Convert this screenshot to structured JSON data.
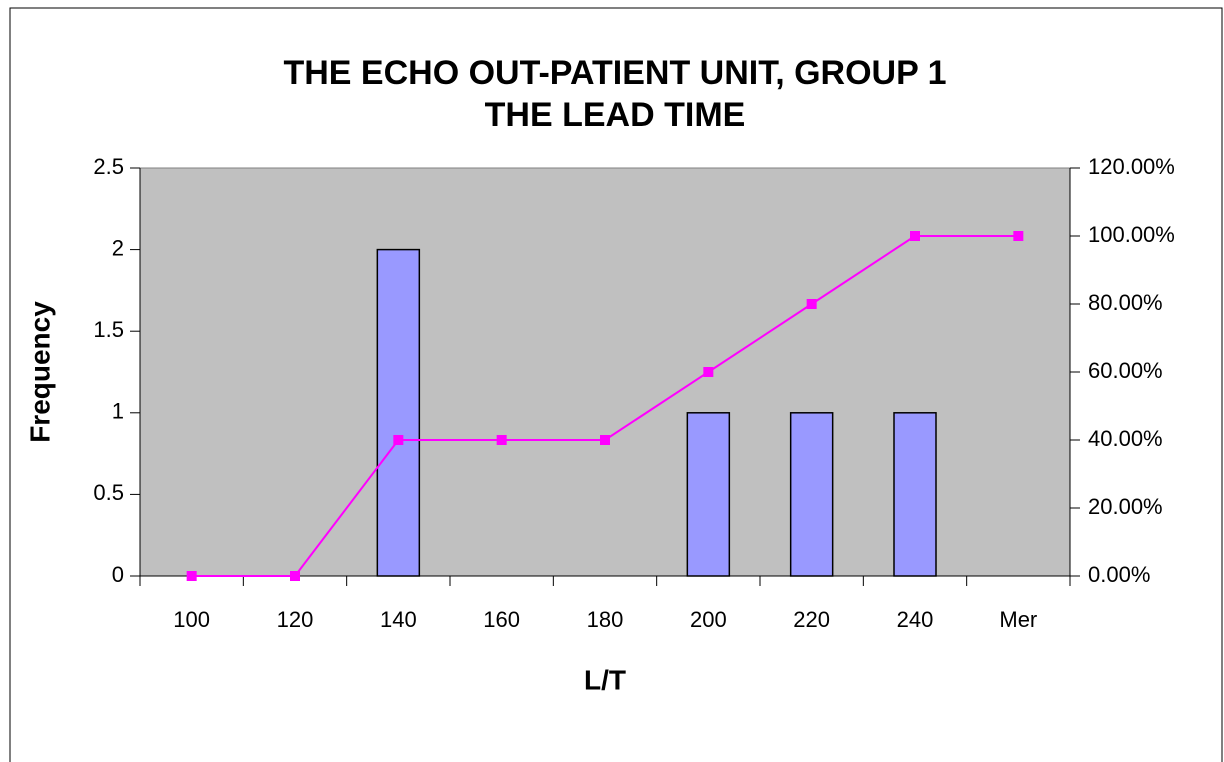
{
  "chart_data": {
    "type": "bar",
    "title": [
      "THE ECHO OUT-PATIENT UNIT, GROUP 1",
      "THE LEAD TIME"
    ],
    "xlabel": "L/T",
    "ylabel": "Frequency",
    "categories": [
      "100",
      "120",
      "140",
      "160",
      "180",
      "200",
      "220",
      "240",
      "Mer"
    ],
    "series": [
      {
        "type": "bar",
        "color": "#9999ff",
        "values": [
          0,
          0,
          2,
          0,
          0,
          1,
          1,
          1,
          0
        ]
      },
      {
        "type": "line",
        "color": "#ff00ff",
        "axis": "y2",
        "values": [
          0,
          0,
          40,
          40,
          40,
          60,
          80,
          100,
          100
        ]
      }
    ],
    "ylim": [
      0,
      2.5
    ],
    "yticks": [
      0,
      0.5,
      1,
      1.5,
      2,
      2.5
    ],
    "y2lim": [
      0,
      120
    ],
    "y2ticks": [
      {
        "value": 0,
        "label": "0.00%"
      },
      {
        "value": 20,
        "label": "20.00%"
      },
      {
        "value": 40,
        "label": "40.00%"
      },
      {
        "value": 60,
        "label": "60.00%"
      },
      {
        "value": 80,
        "label": "80.00%"
      },
      {
        "value": 100,
        "label": "100.00%"
      },
      {
        "value": 120,
        "label": "120.00%"
      }
    ],
    "plot_color": "#c0c0c0",
    "grid": false
  }
}
